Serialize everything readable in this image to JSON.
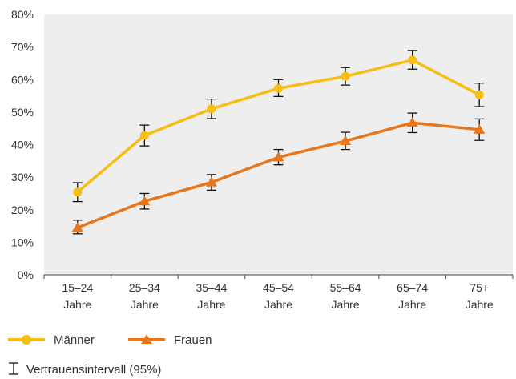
{
  "chart_data": {
    "type": "line",
    "categories": [
      [
        "15–24",
        "Jahre"
      ],
      [
        "25–34",
        "Jahre"
      ],
      [
        "35–44",
        "Jahre"
      ],
      [
        "45–54",
        "Jahre"
      ],
      [
        "55–64",
        "Jahre"
      ],
      [
        "65–74",
        "Jahre"
      ],
      [
        "75+",
        "Jahre"
      ]
    ],
    "ylim": [
      0,
      80
    ],
    "yticks": [
      0,
      10,
      20,
      30,
      40,
      50,
      60,
      70,
      80
    ],
    "ytick_labels": [
      "0%",
      "10%",
      "20%",
      "30%",
      "40%",
      "50%",
      "60%",
      "70%",
      "80%"
    ],
    "grid": false,
    "plot_background": "#eeeeee",
    "legend_position": "bottom-left",
    "series": [
      {
        "name": "Männer",
        "marker": "circle",
        "color": "#f7bd12",
        "values": [
          25.4,
          42.8,
          51.0,
          57.3,
          61.0,
          66.0,
          55.3
        ],
        "ci_low": [
          22.5,
          39.6,
          48.0,
          54.8,
          58.3,
          63.2,
          51.7
        ],
        "ci_high": [
          28.3,
          46.0,
          54.0,
          60.0,
          63.7,
          68.9,
          58.9
        ]
      },
      {
        "name": "Frauen",
        "marker": "triangle",
        "color": "#e8751a",
        "values": [
          14.5,
          22.6,
          28.4,
          36.1,
          41.1,
          46.7,
          44.6
        ],
        "ci_low": [
          12.6,
          20.2,
          26.0,
          33.8,
          38.5,
          43.7,
          41.3
        ],
        "ci_high": [
          16.8,
          25.0,
          30.8,
          38.5,
          43.8,
          49.7,
          47.9
        ]
      }
    ],
    "ci_legend": "Vertrauensintervall (95%)",
    "errorbar_color": "#111111"
  }
}
